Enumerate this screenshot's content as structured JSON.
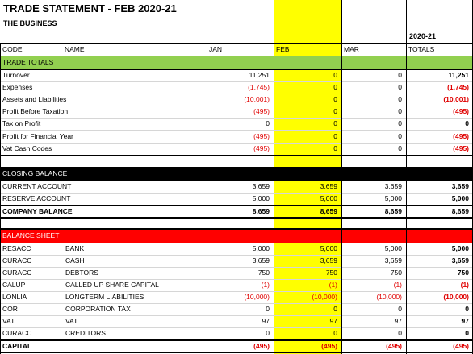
{
  "header": {
    "title": "TRADE STATEMENT - FEB 2020-21",
    "business": "THE BUSINESS",
    "year_label": "2020-21"
  },
  "columns": {
    "code": "CODE",
    "name": "NAME",
    "jan": "JAN",
    "feb": "FEB",
    "mar": "MAR",
    "totals": "TOTALS"
  },
  "trade": {
    "heading": "TRADE TOTALS",
    "rows": [
      {
        "label": "Turnover",
        "jan": "11,251",
        "feb": "0",
        "mar": "0",
        "total": "11,251"
      },
      {
        "label": "Expenses",
        "jan": "(1,745)",
        "feb": "0",
        "mar": "0",
        "total": "(1,745)"
      },
      {
        "label": "Assets and Liabilities",
        "jan": "(10,001)",
        "feb": "0",
        "mar": "0",
        "total": "(10,001)"
      },
      {
        "label": "Profit Before Taxation",
        "jan": "(495)",
        "feb": "0",
        "mar": "0",
        "total": "(495)"
      },
      {
        "label": "Tax on Profit",
        "jan": "0",
        "feb": "0",
        "mar": "0",
        "total": "0"
      },
      {
        "label": "Profit for Financial Year",
        "jan": "(495)",
        "feb": "0",
        "mar": "0",
        "total": "(495)"
      },
      {
        "label": "Vat Cash Codes",
        "jan": "(495)",
        "feb": "0",
        "mar": "0",
        "total": "(495)"
      }
    ]
  },
  "closing": {
    "heading": "CLOSING BALANCE",
    "rows": [
      {
        "label": "CURRENT ACCOUNT",
        "jan": "3,659",
        "feb": "3,659",
        "mar": "3,659",
        "total": "3,659"
      },
      {
        "label": "RESERVE ACCOUNT",
        "jan": "5,000",
        "feb": "5,000",
        "mar": "5,000",
        "total": "5,000"
      }
    ],
    "total_row": {
      "label": "COMPANY BALANCE",
      "jan": "8,659",
      "feb": "8,659",
      "mar": "8,659",
      "total": "8,659"
    }
  },
  "balance": {
    "heading": "BALANCE SHEET",
    "rows": [
      {
        "code": "RESACC",
        "name": "BANK",
        "jan": "5,000",
        "feb": "5,000",
        "mar": "5,000",
        "total": "5,000"
      },
      {
        "code": "CURACC",
        "name": "CASH",
        "jan": "3,659",
        "feb": "3,659",
        "mar": "3,659",
        "total": "3,659"
      },
      {
        "code": "CURACC",
        "name": "DEBTORS",
        "jan": "750",
        "feb": "750",
        "mar": "750",
        "total": "750"
      },
      {
        "code": "CALUP",
        "name": "CALLED UP SHARE CAPITAL",
        "jan": "(1)",
        "feb": "(1)",
        "mar": "(1)",
        "total": "(1)"
      },
      {
        "code": "LONLIA",
        "name": "LONGTERM LIABILITIES",
        "jan": "(10,000)",
        "feb": "(10,000)",
        "mar": "(10,000)",
        "total": "(10,000)"
      },
      {
        "code": "COR",
        "name": "CORPORATION TAX",
        "jan": "0",
        "feb": "0",
        "mar": "0",
        "total": "0"
      },
      {
        "code": "VAT",
        "name": "VAT",
        "jan": "97",
        "feb": "97",
        "mar": "97",
        "total": "97"
      },
      {
        "code": "CURACC",
        "name": "CREDITORS",
        "jan": "0",
        "feb": "0",
        "mar": "0",
        "total": "0"
      }
    ],
    "total_row": {
      "label": "CAPITAL",
      "jan": "(495)",
      "feb": "(495)",
      "mar": "(495)",
      "total": "(495)"
    }
  },
  "colors": {
    "highlight": "#ffff00",
    "trade_band": "#92d050",
    "closing_band": "#000000",
    "balance_band": "#ff0000",
    "negative": "#e00000"
  }
}
